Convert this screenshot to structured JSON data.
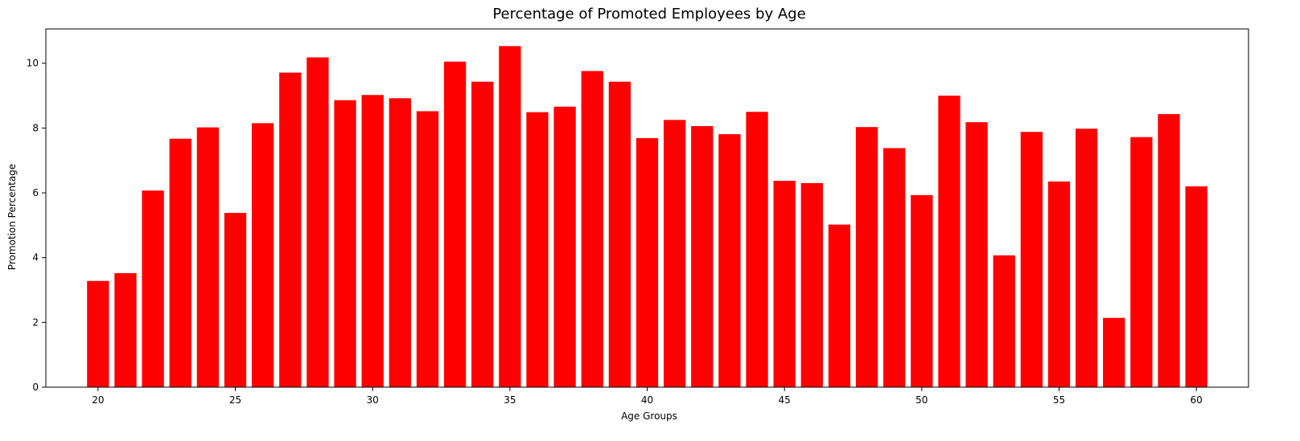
{
  "chart_data": {
    "type": "bar",
    "title": "Percentage of Promoted Employees by Age",
    "xlabel": "Age Groups",
    "ylabel": "Promotion Percentage",
    "bar_color": "#ff0000",
    "x": [
      20,
      21,
      22,
      23,
      24,
      25,
      26,
      27,
      28,
      29,
      30,
      31,
      32,
      33,
      34,
      35,
      36,
      37,
      38,
      39,
      40,
      41,
      42,
      43,
      44,
      45,
      46,
      47,
      48,
      49,
      50,
      51,
      52,
      53,
      54,
      55,
      56,
      57,
      58,
      59,
      60
    ],
    "values": [
      3.28,
      3.52,
      6.07,
      7.67,
      8.02,
      5.38,
      8.15,
      9.71,
      10.18,
      8.86,
      9.02,
      8.92,
      8.52,
      10.05,
      9.43,
      10.53,
      8.49,
      8.66,
      9.76,
      9.43,
      7.69,
      8.25,
      8.06,
      7.81,
      8.5,
      6.37,
      6.3,
      5.02,
      8.03,
      7.38,
      5.93,
      9.0,
      8.18,
      4.07,
      7.88,
      6.35,
      7.98,
      2.14,
      7.72,
      8.43,
      6.2
    ],
    "xlim": [
      18.1,
      61.9
    ],
    "ylim": [
      0,
      11.06
    ],
    "x_ticks": [
      20,
      25,
      30,
      35,
      40,
      45,
      50,
      55,
      60
    ],
    "y_ticks": [
      0,
      2,
      4,
      6,
      8,
      10
    ],
    "grid": false
  }
}
